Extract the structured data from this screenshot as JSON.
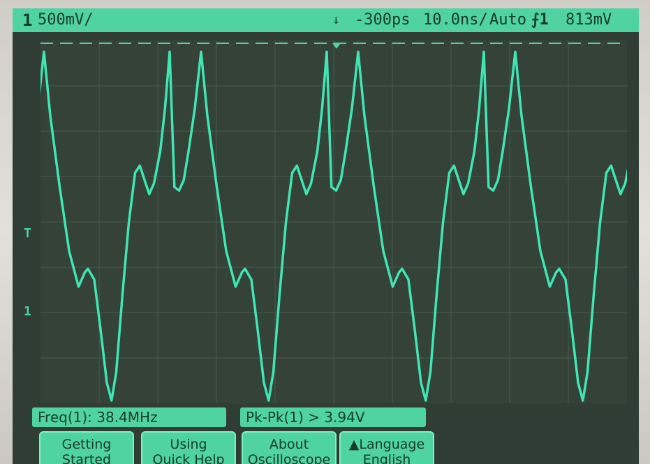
{
  "status": {
    "channel": "1",
    "volts_per_div": "500",
    "volts_unit": "mV/",
    "trigger_icon": "↓",
    "delay": "-300",
    "delay_unit": "ps",
    "timebase": "10.0",
    "timebase_unit": "ns/",
    "mode": "Auto",
    "trigger_edge": "⨍1",
    "trigger_level": "813",
    "trigger_level_unit": "mV"
  },
  "markers": {
    "trigger_pos": "T",
    "ground": "1"
  },
  "measurements": {
    "freq": "Freq(1): 38.4MHz",
    "pkpk": "Pk-Pk(1) > 3.94V"
  },
  "softkeys": [
    {
      "line1": "Getting",
      "line2": "Started"
    },
    {
      "line1": "Using",
      "line2": "Quick Help"
    },
    {
      "line1": "About",
      "line2": "Oscilloscope"
    },
    {
      "line1": "▲Language",
      "line2": "English"
    }
  ],
  "colors": {
    "trace": "#3fe6b4",
    "screen_bg": "#2f3d35",
    "ui_green": "#4fd3a0",
    "grid": "#4a5a50"
  }
}
